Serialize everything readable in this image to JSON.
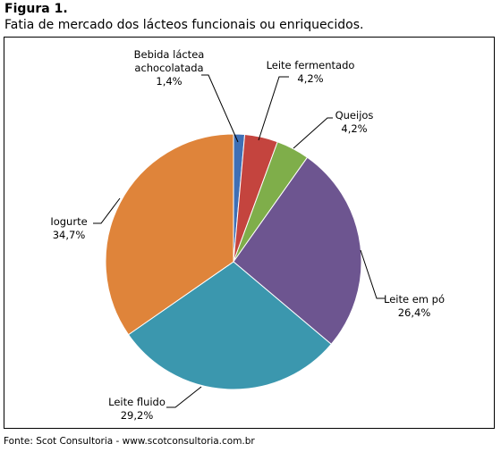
{
  "figure": {
    "label": "Figura 1.",
    "title": "Fatia de mercado dos lácteos funcionais ou enriquecidos."
  },
  "source": "Fonte: Scot Consultoria - www.scotconsultoria.com.br",
  "chart_data": {
    "type": "pie",
    "start_angle_deg": 0,
    "direction": "clockwise",
    "legend": "none",
    "slices": [
      {
        "name": "Bebida láctea achocolatada",
        "label_lines": [
          "Bebida láctea",
          "achocolatada"
        ],
        "value": 1.4,
        "value_label": "1,4%",
        "color": "#3f6fb5"
      },
      {
        "name": "Leite fermentado",
        "label_lines": [
          "Leite fermentado"
        ],
        "value": 4.2,
        "value_label": "4,2%",
        "color": "#c4443e"
      },
      {
        "name": "Queijos",
        "label_lines": [
          "Queijos"
        ],
        "value": 4.2,
        "value_label": "4,2%",
        "color": "#7fae4a"
      },
      {
        "name": "Leite em pó",
        "label_lines": [
          "Leite em pó"
        ],
        "value": 26.4,
        "value_label": "26,4%",
        "color": "#6d5590"
      },
      {
        "name": "Leite fluido",
        "label_lines": [
          "Leite fluido"
        ],
        "value": 29.2,
        "value_label": "29,2%",
        "color": "#3b97ae"
      },
      {
        "name": "Iogurte",
        "label_lines": [
          "Iogurte"
        ],
        "value": 34.7,
        "value_label": "34,7%",
        "color": "#df843a"
      }
    ]
  }
}
